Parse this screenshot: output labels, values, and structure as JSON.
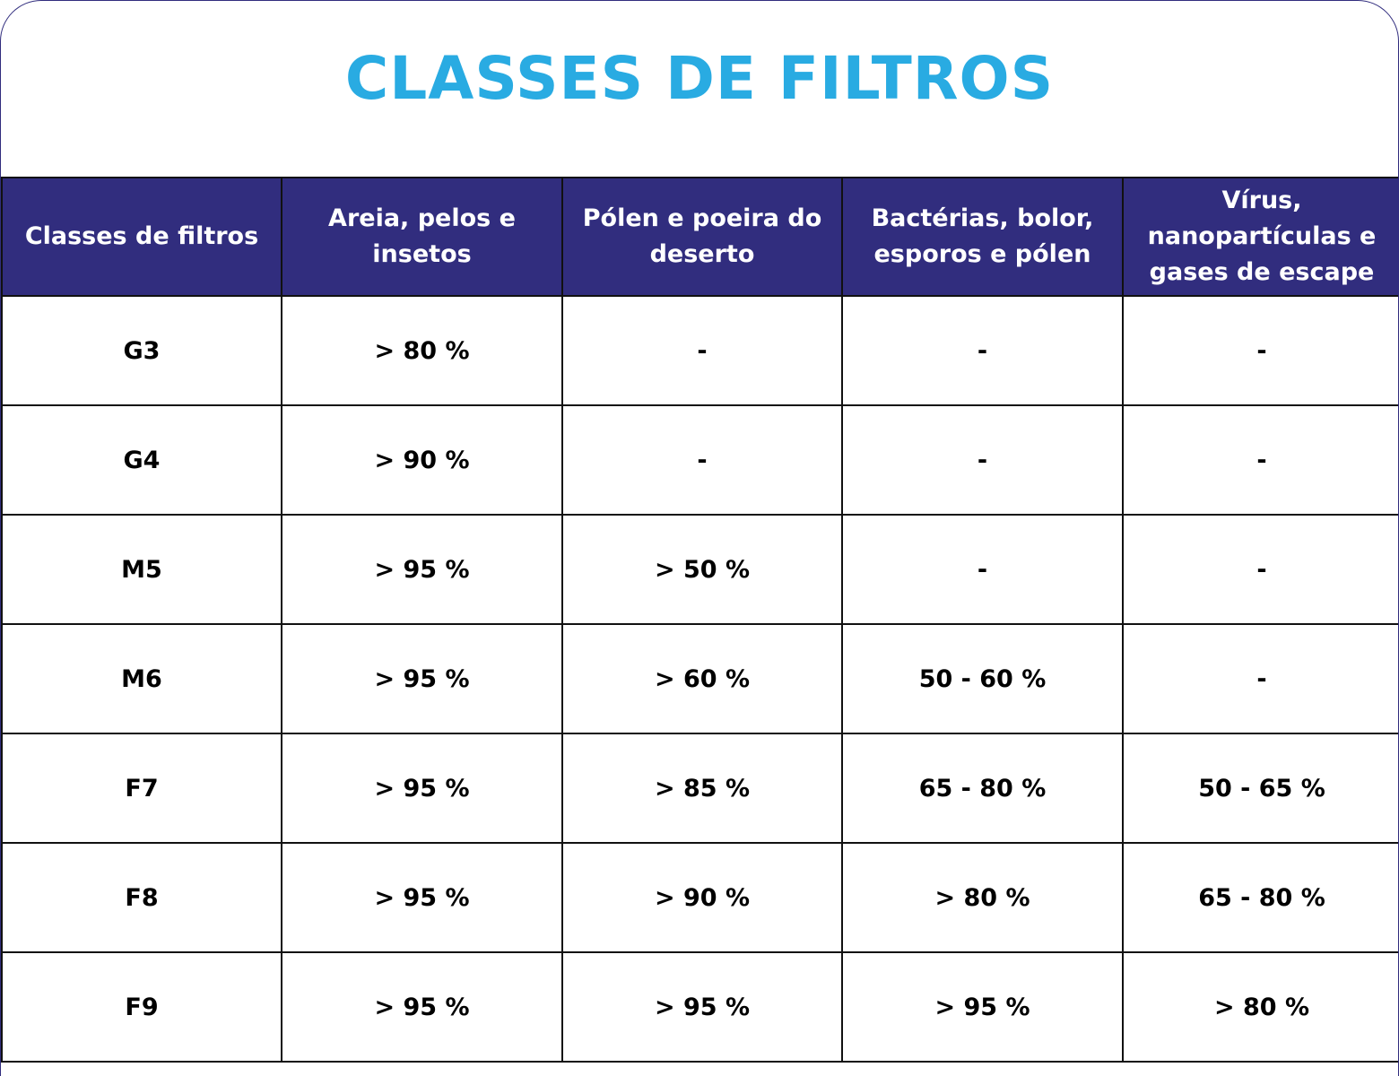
{
  "title": "CLASSES DE FILTROS",
  "table": {
    "headers": [
      "Classes de filtros",
      "Areia, pelos e insetos",
      "Pólen e poeira do deserto",
      "Bactérias, bolor, esporos e pólen",
      "Vírus, nanopartículas e gases de escape"
    ],
    "rows": [
      [
        "G3",
        "> 80 %",
        "-",
        "-",
        "-"
      ],
      [
        "G4",
        "> 90 %",
        "-",
        "-",
        "-"
      ],
      [
        "M5",
        "> 95 %",
        "> 50 %",
        "-",
        "-"
      ],
      [
        "M6",
        "> 95 %",
        "> 60 %",
        "50 - 60 %",
        "-"
      ],
      [
        "F7",
        "> 95 %",
        "> 85 %",
        "65 - 80 %",
        "50 - 65 %"
      ],
      [
        "F8",
        "> 95 %",
        "> 90 %",
        "> 80 %",
        "65 - 80 %"
      ],
      [
        "F9",
        "> 95 %",
        "> 95 %",
        "> 95 %",
        "> 80 %"
      ]
    ]
  }
}
